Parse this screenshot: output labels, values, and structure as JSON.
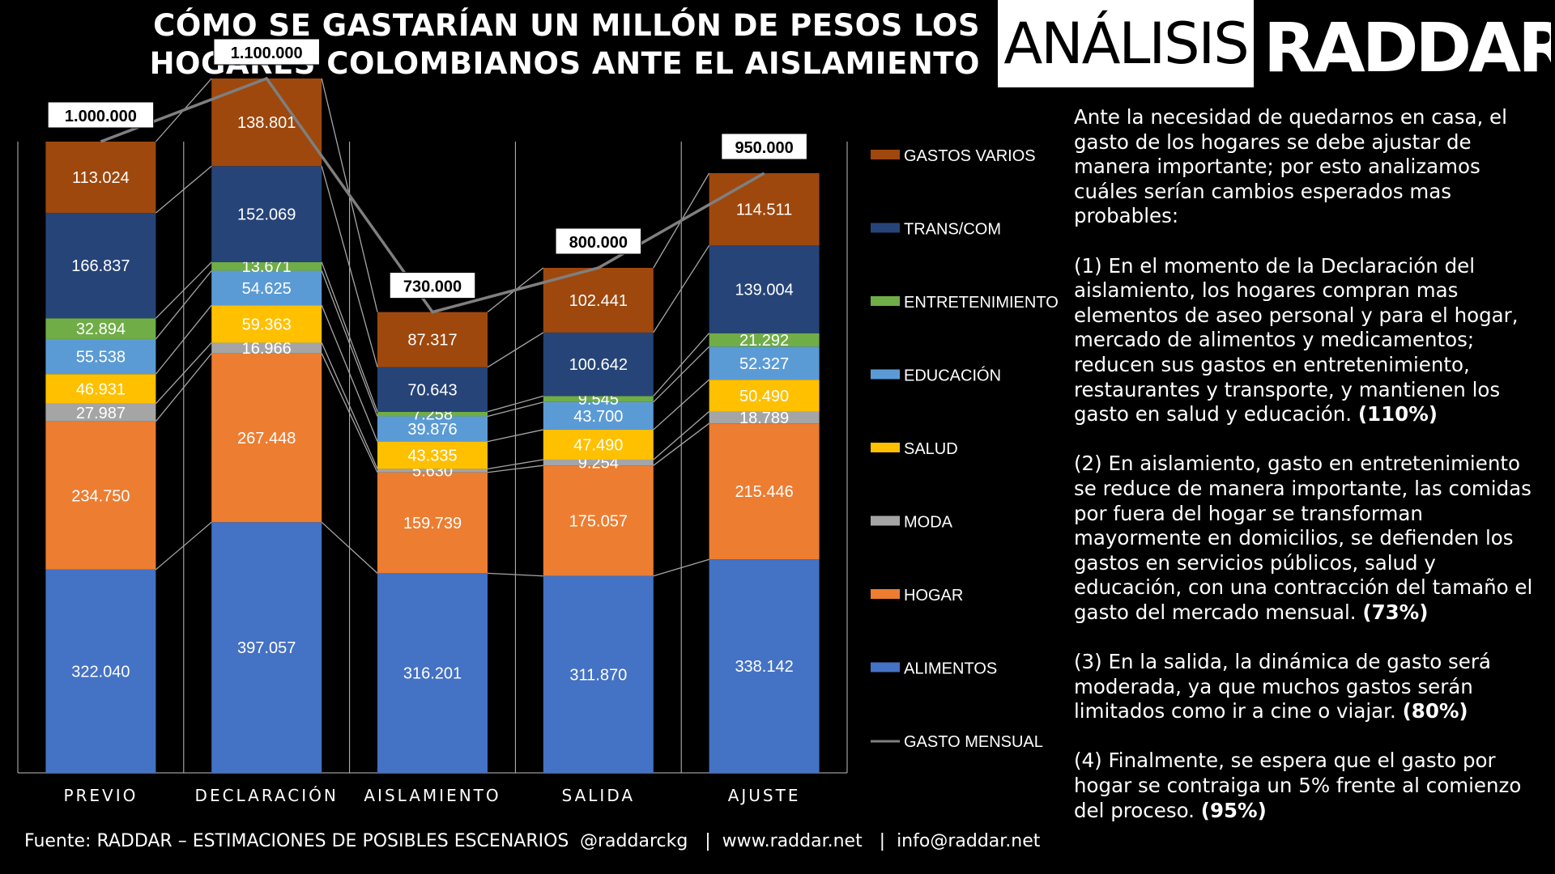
{
  "header": {
    "title_line1": "CÓMO SE GASTARÍAN UN MILLÓN DE PESOS LOS",
    "title_line2": "HOGARES COLOMBIANOS ANTE EL AISLAMIENTO",
    "tag": "ANÁLISIS",
    "brand": "RADDAR"
  },
  "description": {
    "intro": "Ante la necesidad de quedarnos en casa, el gasto de los hogares se debe ajustar de manera importante; por esto analizamos cuáles serían cambios esperados mas probables:",
    "p1_text": "(1) En el momento de la Declaración del aislamiento, los hogares compran mas elementos de aseo personal y para el hogar, mercado de alimentos y medicamentos; reducen sus gastos en entretenimiento, restaurantes y transporte, y mantienen los gasto en salud y educación.",
    "p1_pct": "(110%)",
    "p2_text": "(2) En aislamiento, gasto en entretenimiento se reduce de manera importante, las comidas por fuera del hogar se transforman mayormente en domicilios, se defienden los gastos en servicios públicos, salud y educación, con una contracción del tamaño el gasto del mercado mensual.",
    "p2_pct": "(73%)",
    "p3_text": "(3) En la salida, la dinámica de gasto será moderada, ya que muchos gastos serán limitados como ir a cine o viajar.",
    "p3_pct": "(80%)",
    "p4_text": "(4) Finalmente, se espera que el gasto por hogar se contraiga un 5% frente al comienzo del proceso.",
    "p4_pct": "(95%)"
  },
  "footer": {
    "source": "Fuente: RADDAR – ESTIMACIONES DE POSIBLES ESCENARIOS",
    "contacts": "@raddarckg   |  www.raddar.net   |  info@raddar.net"
  },
  "chart_data": {
    "type": "bar",
    "stacked": true,
    "categories": [
      "PREVIO",
      "DECLARACIÓN",
      "AISLAMIENTO",
      "SALIDA",
      "AJUSTE"
    ],
    "series": [
      {
        "name": "ALIMENTOS",
        "color": "#4472C4",
        "values": [
          322040,
          397057,
          316201,
          311870,
          338142
        ],
        "labels": [
          "322.040",
          "397.057",
          "316.201",
          "311.870",
          "338.142"
        ]
      },
      {
        "name": "HOGAR",
        "color": "#ED7D31",
        "values": [
          234750,
          267448,
          159739,
          175057,
          215446
        ],
        "labels": [
          "234.750",
          "267.448",
          "159.739",
          "175.057",
          "215.446"
        ]
      },
      {
        "name": "MODA",
        "color": "#A5A5A5",
        "values": [
          27987,
          16966,
          5630,
          9254,
          18789
        ],
        "labels": [
          "27.987",
          "16.966",
          "5.630",
          "9.254",
          "18.789"
        ]
      },
      {
        "name": "SALUD",
        "color": "#FFC000",
        "values": [
          46931,
          59363,
          43335,
          47490,
          50490
        ],
        "labels": [
          "46.931",
          "59.363",
          "43.335",
          "47.490",
          "50.490"
        ]
      },
      {
        "name": "EDUCACIÓN",
        "color": "#5B9BD5",
        "values": [
          55538,
          54625,
          39876,
          43700,
          52327
        ],
        "labels": [
          "55.538",
          "54.625",
          "39.876",
          "43.700",
          "52.327"
        ]
      },
      {
        "name": "ENTRETENIMIENTO",
        "color": "#70AD47",
        "values": [
          32894,
          13671,
          7258,
          9545,
          21292
        ],
        "labels": [
          "32.894",
          "13.671",
          "7.258",
          "9.545",
          "21.292"
        ]
      },
      {
        "name": "TRANS/COM",
        "color": "#264478",
        "values": [
          166837,
          152069,
          70643,
          100642,
          139004
        ],
        "labels": [
          "166.837",
          "152.069",
          "70.643",
          "100.642",
          "139.004"
        ]
      },
      {
        "name": "GASTOS VARIOS",
        "color": "#9E480E",
        "values": [
          113024,
          138801,
          87317,
          102441,
          114511
        ],
        "labels": [
          "113.024",
          "138.801",
          "87.317",
          "102.441",
          "114.511"
        ]
      }
    ],
    "total_line": {
      "name": "GASTO MENSUAL",
      "color": "#7F7F7F",
      "values": [
        1000000,
        1100000,
        730000,
        800000,
        950000
      ],
      "labels": [
        "1.000.000",
        "1.100.000",
        "730.000",
        "800.000",
        "950.000"
      ]
    },
    "legend_order": [
      "GASTOS VARIOS",
      "TRANS/COM",
      "ENTRETENIMIENTO",
      "EDUCACIÓN",
      "SALUD",
      "MODA",
      "HOGAR",
      "ALIMENTOS",
      "GASTO MENSUAL"
    ],
    "legend_position": "right",
    "ylim": [
      0,
      1150000
    ],
    "grid": false
  }
}
